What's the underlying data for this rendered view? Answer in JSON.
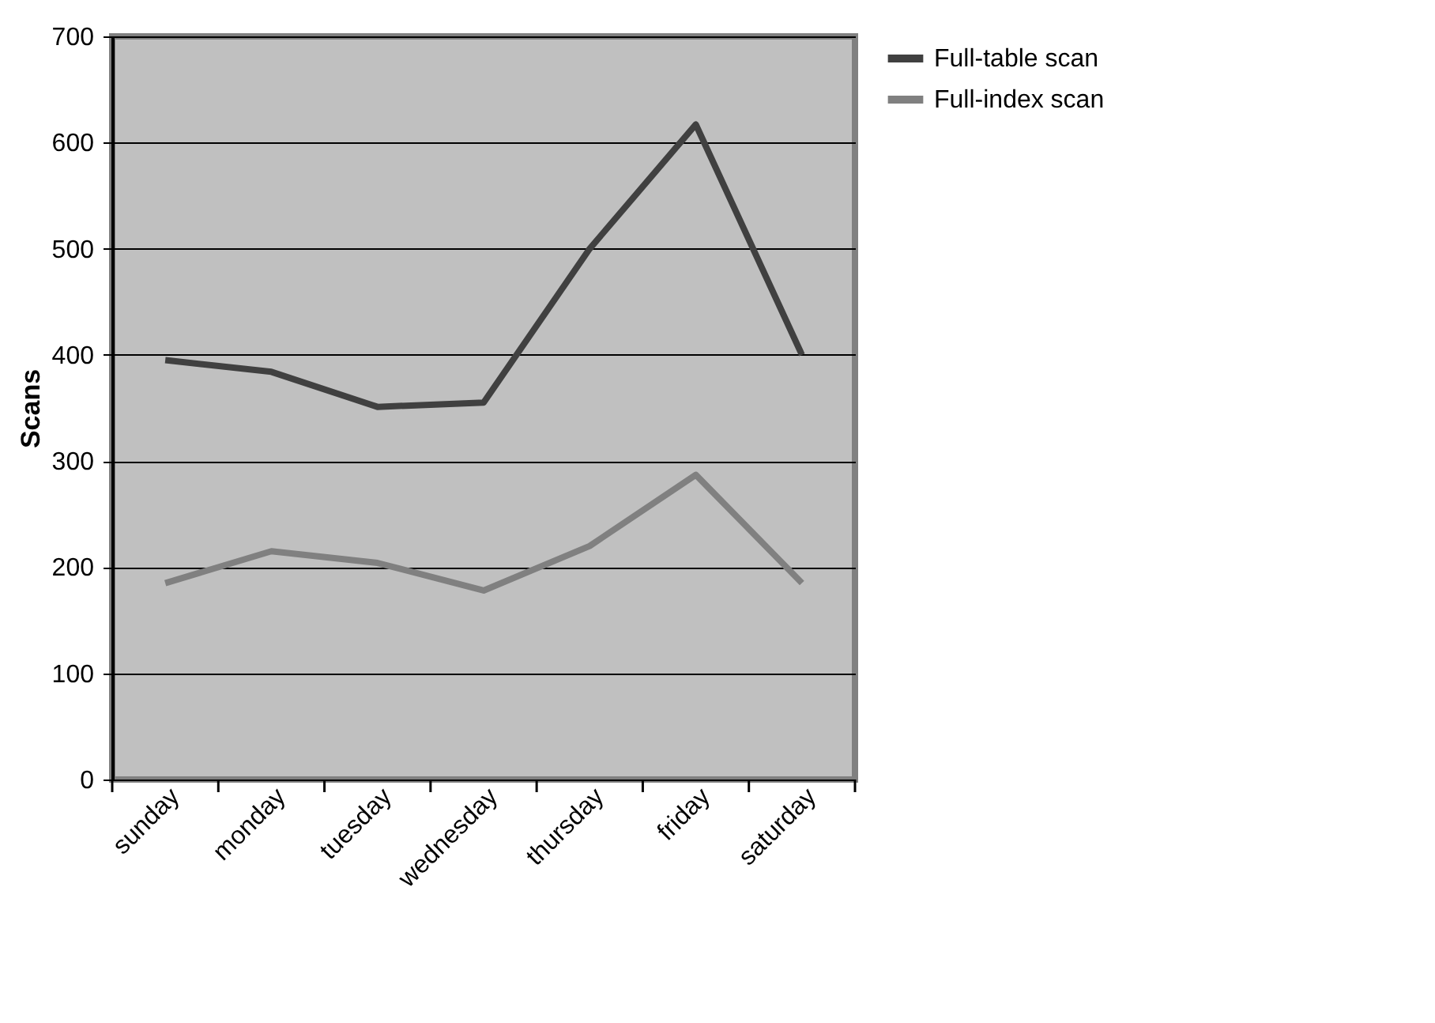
{
  "chart_data": {
    "type": "line",
    "ylabel": "Scans",
    "categories": [
      "sunday",
      "monday",
      "tuesday",
      "wednesday",
      "thursday",
      "friday",
      "saturday"
    ],
    "series": [
      {
        "name": "Full-table scan",
        "color": "#404040",
        "values": [
          395,
          384,
          351,
          355,
          500,
          617,
          400
        ]
      },
      {
        "name": "Full-index scan",
        "color": "#808080",
        "values": [
          185,
          215,
          204,
          178,
          220,
          287,
          185
        ]
      }
    ],
    "ylim": [
      0,
      700
    ],
    "yticks": [
      0,
      100,
      200,
      300,
      400,
      500,
      600,
      700
    ],
    "grid": "y",
    "legend": "right",
    "marker": "none",
    "line_style": "solid"
  }
}
